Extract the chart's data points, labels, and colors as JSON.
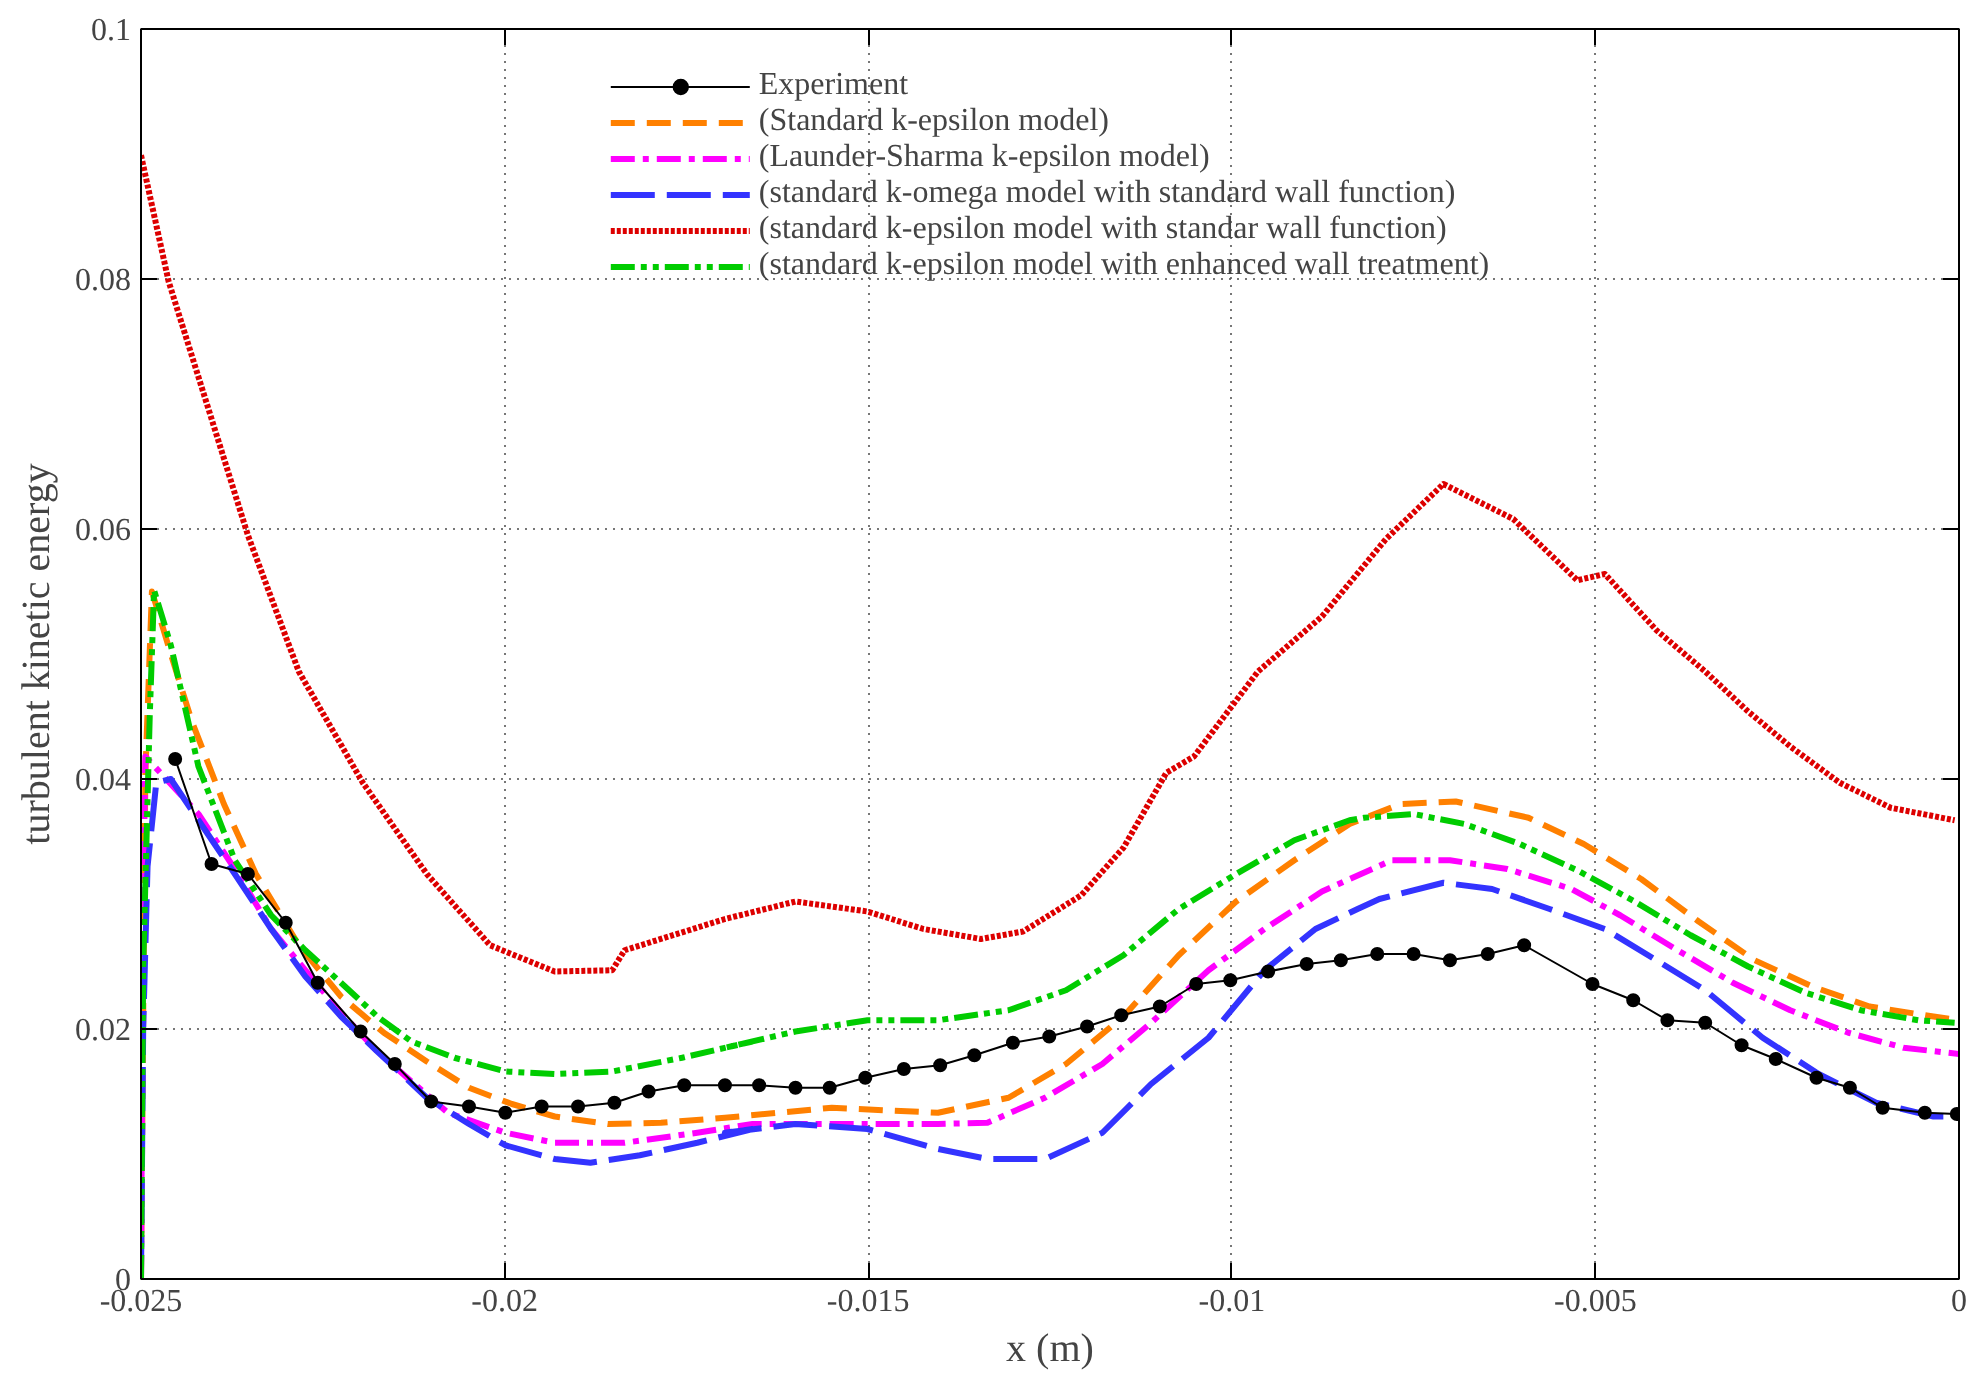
{
  "chart_data": {
    "type": "line",
    "xlabel": "x (m)",
    "ylabel": "turbulent kinetic energy",
    "xlim": [
      -0.025,
      0
    ],
    "ylim": [
      0,
      0.1
    ],
    "xticks": [
      -0.025,
      -0.02,
      -0.015,
      -0.01,
      -0.005,
      0
    ],
    "yticks": [
      0,
      0.02,
      0.04,
      0.06,
      0.08,
      0.1
    ],
    "grid": true,
    "legend": "top",
    "series": [
      {
        "name": "Experiment",
        "color": "#000000",
        "marker": "circle",
        "line_style": "solid",
        "x": [
          -0.02453,
          -0.02403,
          -0.02353,
          -0.02301,
          -0.02257,
          -0.02198,
          -0.02151,
          -0.02101,
          -0.02049,
          -0.01999,
          -0.01949,
          -0.01899,
          -0.01849,
          -0.01802,
          -0.01753,
          -0.01697,
          -0.0165,
          -0.016,
          -0.01553,
          -0.01504,
          -0.01451,
          -0.01401,
          -0.01354,
          -0.01301,
          -0.01251,
          -0.01199,
          -0.01152,
          -0.01099,
          -0.01049,
          -0.01002,
          -0.0095,
          -0.00897,
          -0.0085,
          -0.008,
          -0.0075,
          -0.007,
          -0.00648,
          -0.00598,
          -0.00504,
          -0.00448,
          -0.00401,
          -0.00349,
          -0.00299,
          -0.00252,
          -0.00196,
          -0.0015,
          -0.00105,
          -0.00047,
          -3e-05
        ],
        "values": [
          0.0416,
          0.0332,
          0.0324,
          0.0285,
          0.0237,
          0.0198,
          0.0172,
          0.0142,
          0.0138,
          0.0133,
          0.0138,
          0.0138,
          0.0141,
          0.015,
          0.0155,
          0.0155,
          0.0155,
          0.0153,
          0.0153,
          0.0161,
          0.0168,
          0.0171,
          0.0179,
          0.0189,
          0.0194,
          0.0202,
          0.0211,
          0.0218,
          0.0236,
          0.0239,
          0.0246,
          0.0252,
          0.0255,
          0.026,
          0.026,
          0.0255,
          0.026,
          0.0267,
          0.0236,
          0.0223,
          0.0207,
          0.0205,
          0.0187,
          0.0176,
          0.0161,
          0.0153,
          0.0137,
          0.0133,
          0.0132
        ]
      },
      {
        "name": "(Standard k-epsilon model)",
        "color": "#ff8000",
        "marker": "none",
        "line_style": "dashed",
        "x": [
          -0.025,
          -0.02497,
          -0.02494,
          -0.02485,
          -0.02459,
          -0.0243,
          -0.02386,
          -0.02342,
          -0.02283,
          -0.02225,
          -0.02166,
          -0.02107,
          -0.02049,
          -0.0199,
          -0.01931,
          -0.01858,
          -0.01785,
          -0.01697,
          -0.0155,
          -0.01404,
          -0.01307,
          -0.01228,
          -0.01149,
          -0.01073,
          -0.00994,
          -0.00914,
          -0.00838,
          -0.00768,
          -0.00692,
          -0.00592,
          -0.00516,
          -0.00437,
          -0.00358,
          -0.00281,
          -0.00202,
          -0.00123,
          -0.00035,
          0
        ],
        "values": [
          0,
          0.021,
          0.0405,
          0.055,
          0.05,
          0.0446,
          0.038,
          0.0324,
          0.0267,
          0.0226,
          0.0197,
          0.0174,
          0.0153,
          0.014,
          0.013,
          0.0124,
          0.0125,
          0.0129,
          0.0137,
          0.0133,
          0.0145,
          0.0172,
          0.021,
          0.0259,
          0.0302,
          0.0335,
          0.0364,
          0.038,
          0.0382,
          0.0369,
          0.0348,
          0.032,
          0.0286,
          0.0255,
          0.0234,
          0.0218,
          0.021,
          0.0207
        ]
      },
      {
        "name": "(Launder-Sharma k-epsilon model)",
        "color": "#ff00ff",
        "marker": "none",
        "line_style": "dashdot",
        "x": [
          -0.025,
          -0.02497,
          -0.02494,
          -0.02421,
          -0.02371,
          -0.02321,
          -0.02274,
          -0.02225,
          -0.02175,
          -0.02128,
          -0.02078,
          -0.01999,
          -0.01931,
          -0.01835,
          -0.01735,
          -0.01659,
          -0.0155,
          -0.01404,
          -0.01336,
          -0.01257,
          -0.01178,
          -0.01111,
          -0.01032,
          -0.00955,
          -0.00876,
          -0.0078,
          -0.007,
          -0.00621,
          -0.00533,
          -0.00466,
          -0.00387,
          -0.00311,
          -0.00232,
          -0.00152,
          -0.00076,
          0
        ],
        "values": [
          0,
          0.03,
          0.0418,
          0.0372,
          0.0328,
          0.028,
          0.0247,
          0.0213,
          0.0182,
          0.0158,
          0.0133,
          0.0117,
          0.0109,
          0.0109,
          0.0117,
          0.0124,
          0.0124,
          0.0124,
          0.0125,
          0.0145,
          0.0172,
          0.0205,
          0.0247,
          0.028,
          0.031,
          0.0335,
          0.0335,
          0.0328,
          0.0312,
          0.0291,
          0.0263,
          0.0237,
          0.0215,
          0.0197,
          0.0185,
          0.018
        ]
      },
      {
        "name": "(standard k-omega model with standard wall function)",
        "color": "#3333ff",
        "marker": "none",
        "line_style": "longdashed",
        "x": [
          -0.025,
          -0.02497,
          -0.02491,
          -0.02479,
          -0.02459,
          -0.02421,
          -0.02371,
          -0.02321,
          -0.02274,
          -0.02225,
          -0.02175,
          -0.02107,
          -0.02049,
          -0.01999,
          -0.01931,
          -0.01882,
          -0.01814,
          -0.01735,
          -0.01659,
          -0.01697,
          -0.016,
          -0.01501,
          -0.01404,
          -0.01336,
          -0.01257,
          -0.01178,
          -0.01111,
          -0.01032,
          -0.00955,
          -0.00885,
          -0.00827,
          -0.00797,
          -0.00709,
          -0.00642,
          -0.00563,
          -0.00487,
          -0.00416,
          -0.00349,
          -0.0027,
          -0.00193,
          -0.00114,
          -0.00035,
          0
        ],
        "values": [
          0,
          0.02,
          0.033,
          0.0397,
          0.04,
          0.0367,
          0.0324,
          0.028,
          0.0242,
          0.021,
          0.0182,
          0.0145,
          0.0124,
          0.0107,
          0.0096,
          0.0093,
          0.0099,
          0.0109,
          0.012,
          0.0117,
          0.0124,
          0.012,
          0.0104,
          0.0096,
          0.0096,
          0.0117,
          0.0156,
          0.0193,
          0.0247,
          0.028,
          0.0296,
          0.0304,
          0.0317,
          0.0312,
          0.0296,
          0.028,
          0.0255,
          0.0231,
          0.0193,
          0.0164,
          0.0141,
          0.013,
          0.013
        ]
      },
      {
        "name": "(standard k-epsilon model with standar wall function)",
        "color": "#dd0000",
        "marker": "none",
        "line_style": "dotted",
        "x": [
          -0.025,
          -0.02462,
          -0.02353,
          -0.02283,
          -0.02195,
          -0.02107,
          -0.0202,
          -0.01931,
          -0.01852,
          -0.01835,
          -0.01697,
          -0.016,
          -0.01501,
          -0.01424,
          -0.01345,
          -0.01287,
          -0.01207,
          -0.01149,
          -0.0109,
          -0.01052,
          -0.00964,
          -0.00876,
          -0.00788,
          -0.00709,
          -0.00613,
          -0.00525,
          -0.00487,
          -0.00416,
          -0.00349,
          -0.0029,
          -0.00232,
          -0.00164,
          -0.00094,
          -6e-05
        ],
        "values": [
          0.0899,
          0.0798,
          0.0595,
          0.0486,
          0.0397,
          0.0324,
          0.0267,
          0.0246,
          0.0247,
          0.0263,
          0.0288,
          0.0302,
          0.0294,
          0.028,
          0.0272,
          0.0278,
          0.0307,
          0.0345,
          0.0405,
          0.0418,
          0.0486,
          0.053,
          0.0592,
          0.0636,
          0.0608,
          0.0559,
          0.0564,
          0.0519,
          0.0486,
          0.0454,
          0.0426,
          0.0397,
          0.0377,
          0.0367
        ]
      },
      {
        "name": "(standard k-epsilon model with enhanced wall treatment)",
        "color": "#00cc00",
        "marker": "none",
        "line_style": "dashdotdot",
        "x": [
          -0.025,
          -0.02497,
          -0.02488,
          -0.02482,
          -0.02459,
          -0.02421,
          -0.02371,
          -0.02321,
          -0.02274,
          -0.02225,
          -0.02175,
          -0.02128,
          -0.02069,
          -0.01999,
          -0.01931,
          -0.01852,
          -0.01756,
          -0.01659,
          -0.01697,
          -0.016,
          -0.01501,
          -0.01404,
          -0.01307,
          -0.01228,
          -0.01149,
          -0.01073,
          -0.00994,
          -0.00914,
          -0.00838,
          -0.00818,
          -0.0075,
          -0.0068,
          -0.00604,
          -0.00525,
          -0.00446,
          -0.00369,
          -0.0029,
          -0.00211,
          -0.00135,
          -0.00056,
          -6e-05
        ],
        "values": [
          0,
          0.025,
          0.045,
          0.0551,
          0.0507,
          0.041,
          0.0335,
          0.0291,
          0.0263,
          0.0237,
          0.021,
          0.019,
          0.0177,
          0.0166,
          0.0164,
          0.0166,
          0.0177,
          0.019,
          0.0185,
          0.0198,
          0.0207,
          0.0207,
          0.0215,
          0.0231,
          0.0259,
          0.0296,
          0.0324,
          0.0351,
          0.0367,
          0.0369,
          0.0372,
          0.0364,
          0.0348,
          0.0327,
          0.0302,
          0.0275,
          0.025,
          0.0229,
          0.0215,
          0.0207,
          0.0205
        ]
      }
    ]
  }
}
